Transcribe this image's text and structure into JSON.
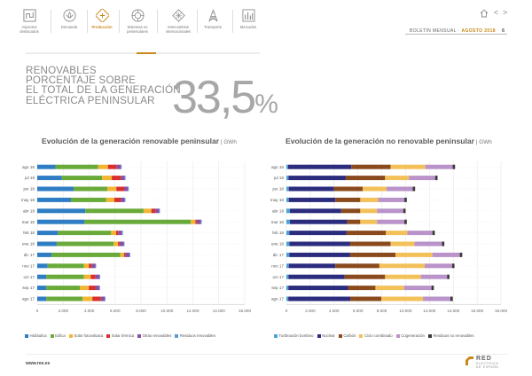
{
  "nav": {
    "items": [
      {
        "label": "Aspectos\ndestacados",
        "icon": "chart-icon",
        "active": false
      },
      {
        "label": "Demanda",
        "icon": "lotus-icon",
        "active": false
      },
      {
        "label": "Producción",
        "icon": "production-icon",
        "active": true
      },
      {
        "label": "Sistemas no\npeninsulares",
        "icon": "islands-icon",
        "active": false
      },
      {
        "label": "Intercambios\ninternacionales",
        "icon": "exchange-icon",
        "active": false
      },
      {
        "label": "Transporte",
        "icon": "tower-icon",
        "active": false
      },
      {
        "label": "Mercados",
        "icon": "market-icon",
        "active": false
      }
    ]
  },
  "header": {
    "home_icon": "home-icon",
    "prev_icon": "chevron-left-icon",
    "next_icon": "chevron-right-icon",
    "bulletin": "BOLETÍN MENSUAL",
    "separator": "·",
    "period": "AGOSTO 2018",
    "page_number": "6"
  },
  "headline": {
    "line1": "RENOVABLES",
    "line2": "PORCENTAJE SOBRE",
    "line3": "EL TOTAL DE LA GENERACIÓN",
    "line4": "ELÉCTRICA PENINSULAR",
    "value": "33,5",
    "unit": "%"
  },
  "colors": {
    "accent": "#c8891b"
  },
  "chart_data": [
    {
      "type": "bar",
      "orientation": "horizontal",
      "stacked": true,
      "title": "Evolución de la generación renovable peninsular",
      "unit": "GWh",
      "categories": [
        "ago 18",
        "jul 18",
        "jun 18",
        "may 18",
        "abr 18",
        "mar 18",
        "feb 18",
        "ene 18",
        "dic 17",
        "nov 17",
        "oct 17",
        "sep 17",
        "ago 17"
      ],
      "xlim": [
        0,
        16000
      ],
      "xticks": [
        "0",
        "2.000",
        "4.000",
        "6.000",
        "8.000",
        "10.000",
        "12.000",
        "14.000",
        "16.000"
      ],
      "series": [
        {
          "name": "Hidráulica",
          "color": "#2f7dc4",
          "values": [
            1400,
            1900,
            2800,
            2600,
            3700,
            3650,
            1600,
            1500,
            1100,
            800,
            700,
            700,
            700
          ]
        },
        {
          "name": "Eólica",
          "color": "#6aaa3a",
          "values": [
            3300,
            3100,
            2600,
            2700,
            4500,
            8200,
            4100,
            4400,
            5300,
            2800,
            2900,
            2600,
            2800
          ]
        },
        {
          "name": "Solar fotovoltaica",
          "color": "#f2b632",
          "values": [
            750,
            750,
            700,
            650,
            600,
            350,
            380,
            330,
            300,
            380,
            520,
            680,
            750
          ]
        },
        {
          "name": "Solar térmica",
          "color": "#d9302c",
          "values": [
            680,
            700,
            600,
            480,
            300,
            100,
            160,
            120,
            90,
            200,
            380,
            500,
            650
          ]
        },
        {
          "name": "Otras renovables",
          "color": "#8a4ea3",
          "values": [
            320,
            300,
            300,
            310,
            300,
            320,
            300,
            320,
            320,
            300,
            300,
            300,
            300
          ]
        },
        {
          "name": "Residuos renovables",
          "color": "#5b9bd5",
          "values": [
            60,
            60,
            60,
            60,
            60,
            60,
            60,
            60,
            60,
            60,
            60,
            60,
            60
          ]
        }
      ]
    },
    {
      "type": "bar",
      "orientation": "horizontal",
      "stacked": true,
      "title": "Evolución de la generación no renovable peninsular",
      "unit": "GWh",
      "categories": [
        "ago 18",
        "jul 18",
        "jun 18",
        "may 18",
        "abr 18",
        "mar 18",
        "feb 18",
        "ene 18",
        "dic 17",
        "nov 17",
        "oct 17",
        "sep 17",
        "ago 17"
      ],
      "xlim": [
        0,
        18000
      ],
      "xticks": [
        "0",
        "2.000",
        "4.000",
        "6.000",
        "8.000",
        "10.000",
        "12.000",
        "14.000",
        "16.000",
        "18.000"
      ],
      "series": [
        {
          "name": "Turbinación bombeo",
          "color": "#4aa3d8",
          "values": [
            150,
            180,
            200,
            200,
            300,
            300,
            250,
            250,
            250,
            200,
            180,
            170,
            160
          ]
        },
        {
          "name": "Nuclear",
          "color": "#2b2c7e",
          "values": [
            5300,
            4800,
            3800,
            3900,
            4300,
            4800,
            4800,
            5100,
            5100,
            3900,
            4700,
            5000,
            5200
          ]
        },
        {
          "name": "Carbón",
          "color": "#8b4a1e",
          "values": [
            3300,
            3300,
            2400,
            2100,
            1600,
            1100,
            3300,
            3400,
            3800,
            3700,
            3400,
            2300,
            2600
          ]
        },
        {
          "name": "Ciclo combinado",
          "color": "#f3c15a",
          "values": [
            2900,
            2000,
            2000,
            1500,
            1400,
            1400,
            1800,
            2000,
            3100,
            3800,
            3000,
            2400,
            3500
          ]
        },
        {
          "name": "Cogeneración",
          "color": "#b993c9",
          "values": [
            2300,
            2200,
            2200,
            2200,
            2200,
            2300,
            2100,
            2300,
            2300,
            2300,
            2200,
            2300,
            2300
          ]
        },
        {
          "name": "Residuos no renovables",
          "color": "#3a3a3a",
          "values": [
            200,
            200,
            200,
            200,
            200,
            200,
            200,
            200,
            200,
            200,
            200,
            200,
            200
          ]
        }
      ]
    }
  ],
  "footer": {
    "url": "www.ree.es",
    "logo_name": "RED",
    "logo_sub1": "ELÉCTRICA",
    "logo_sub2": "DE ESPAÑA"
  }
}
